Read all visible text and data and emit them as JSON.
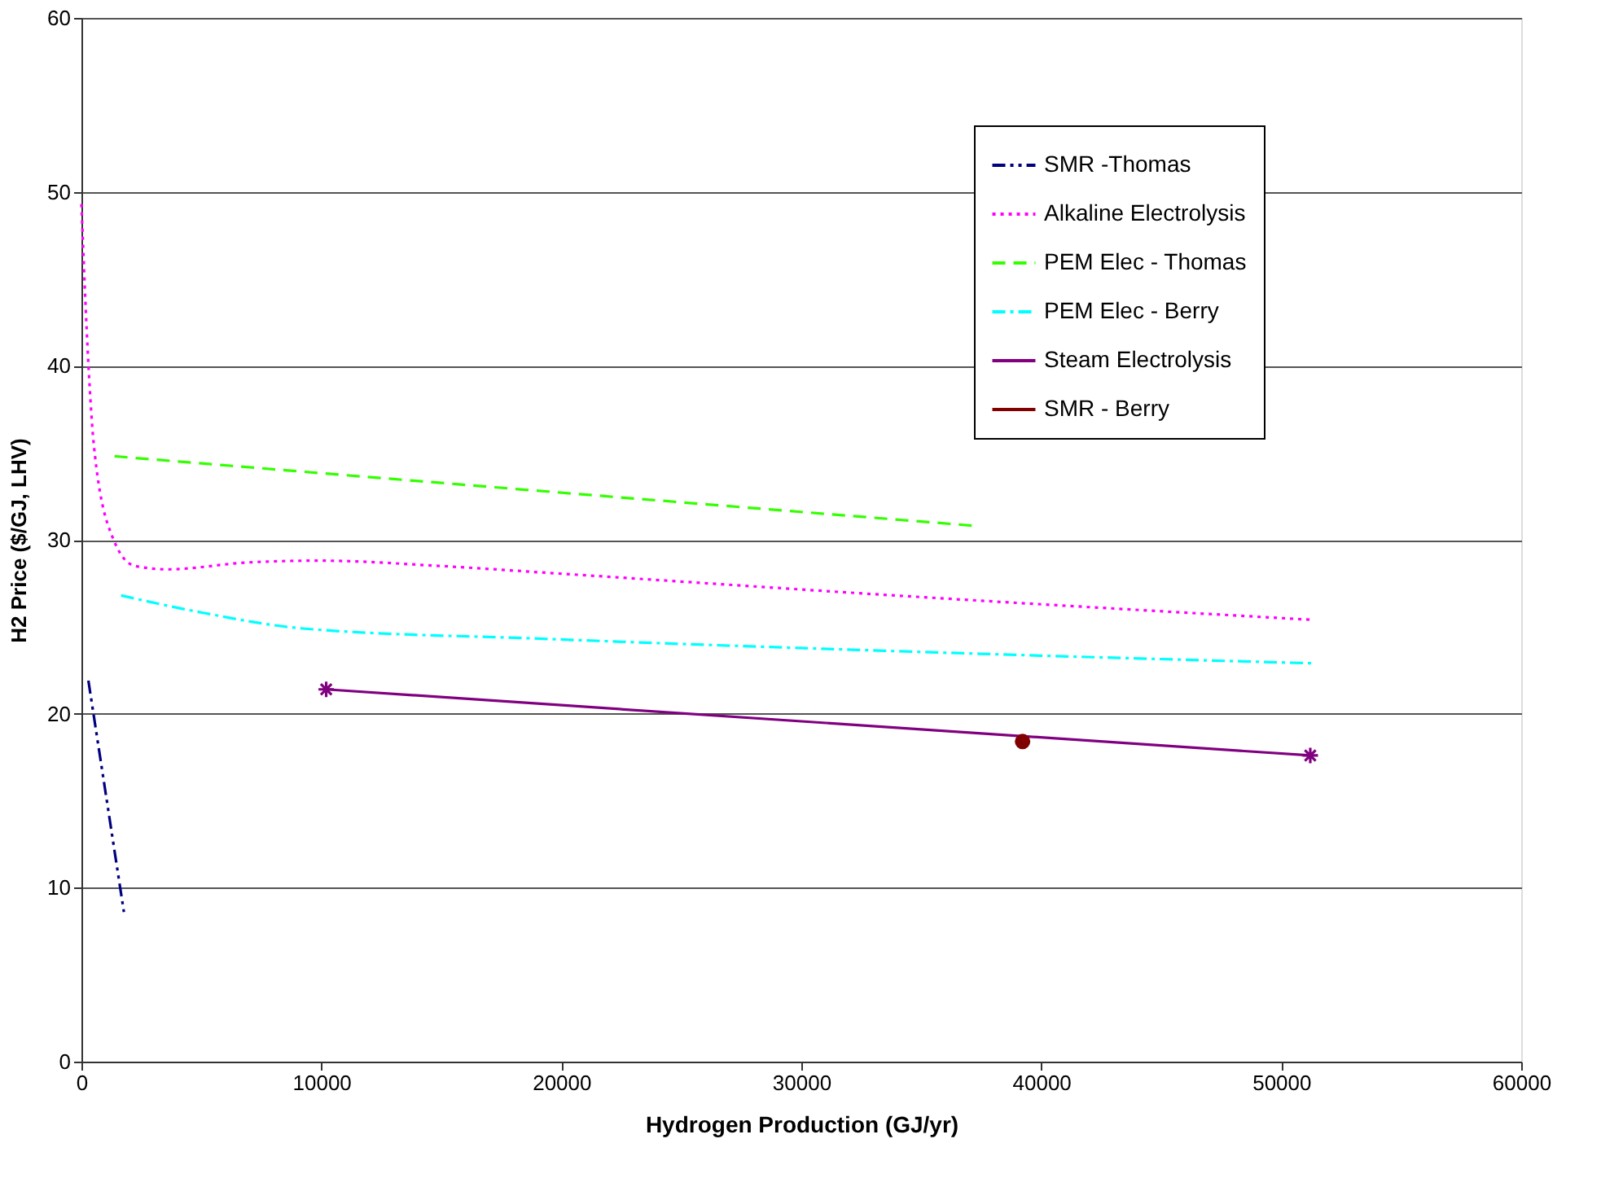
{
  "chart_data": {
    "type": "line",
    "xlabel": "Hydrogen Production (GJ/yr)",
    "ylabel": "H2 Price ($/GJ, LHV)",
    "xlim": [
      0,
      60000
    ],
    "xticks": [
      0,
      10000,
      20000,
      30000,
      40000,
      50000,
      60000
    ],
    "ylim": [
      0,
      60
    ],
    "yticks": [
      0,
      10,
      20,
      30,
      40,
      50,
      60
    ],
    "grid": "y",
    "legend": "top right",
    "series": [
      {
        "name": "SMR -Thomas",
        "color": "#000080",
        "line_style": "dashdotdot",
        "marker": "none",
        "x": [
          290,
          1770
        ],
        "values": [
          21.9,
          8.6
        ]
      },
      {
        "name": "Alkaline Electrolysis",
        "color": "#ff00ff",
        "line_style": "dotted",
        "marker": "none",
        "x": [
          0,
          290,
          520,
          1310,
          2220,
          3580,
          6970,
          9910,
          14870,
          19420,
          33880,
          51260
        ],
        "values": [
          49.3,
          40.1,
          35.4,
          30.1,
          28.5,
          28.3,
          28.7,
          28.8,
          28.5,
          28.1,
          26.8,
          25.4
        ]
      },
      {
        "name": "PEM Elec - Thomas",
        "color": "#33ff00",
        "line_style": "dashed",
        "marker": "none",
        "x": [
          1380,
          18280,
          37250
        ],
        "values": [
          34.8,
          32.9,
          30.8
        ]
      },
      {
        "name": "PEM Elec - Berry",
        "color": "#00ffff",
        "line_style": "dashdot",
        "marker": "none",
        "x": [
          1650,
          4700,
          9230,
          19420,
          33880,
          51260
        ],
        "values": [
          26.8,
          25.9,
          24.9,
          24.3,
          23.6,
          22.9
        ]
      },
      {
        "name": "Steam Electrolysis",
        "color": "#800080",
        "line_style": "solid",
        "marker": "cross",
        "x": [
          10200,
          51210
        ],
        "values": [
          21.4,
          17.6
        ]
      },
      {
        "name": "SMR - Berry",
        "color": "#800000",
        "line_style": "solid",
        "marker": "circle",
        "x": [
          39220
        ],
        "values": [
          18.4
        ]
      }
    ]
  }
}
